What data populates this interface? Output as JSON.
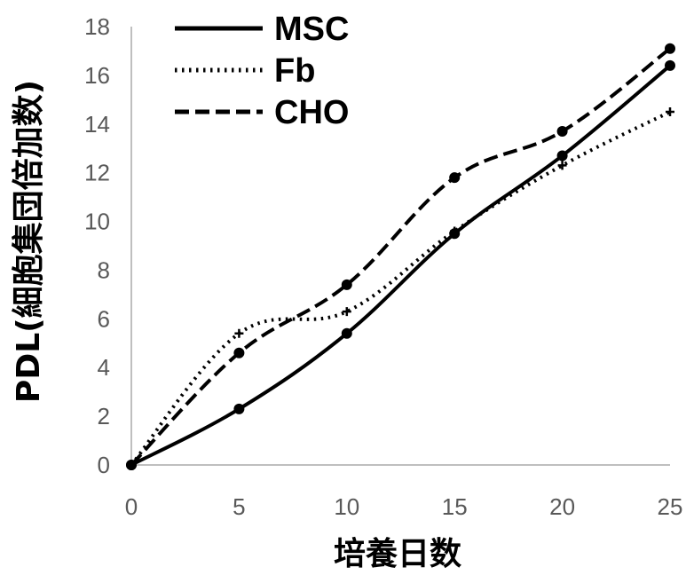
{
  "chart_data": {
    "type": "line",
    "x": [
      0,
      5,
      10,
      15,
      20,
      25
    ],
    "xticks": [
      "0",
      "5",
      "10",
      "15",
      "20",
      "25"
    ],
    "yticks": [
      "0",
      "2",
      "4",
      "6",
      "8",
      "10",
      "12",
      "14",
      "16",
      "18"
    ],
    "xlim": [
      0,
      25
    ],
    "ylim": [
      0,
      18
    ],
    "xlabel": "培養日数",
    "ylabel": "PDL(細胞集団倍加数)",
    "grid": false,
    "legend_position": "top-left",
    "series": [
      {
        "name": "MSC",
        "style": "solid",
        "values": [
          0,
          2.3,
          5.4,
          9.5,
          12.7,
          16.4
        ]
      },
      {
        "name": "Fb",
        "style": "dotted",
        "values": [
          0,
          5.4,
          6.3,
          9.6,
          12.3,
          14.5
        ]
      },
      {
        "name": "CHO",
        "style": "dashed",
        "values": [
          0,
          4.6,
          7.4,
          11.8,
          13.7,
          17.1
        ]
      }
    ],
    "colors": {
      "line": "#000000",
      "axis": "#bfbfbf",
      "tick_text": "#595959"
    }
  }
}
